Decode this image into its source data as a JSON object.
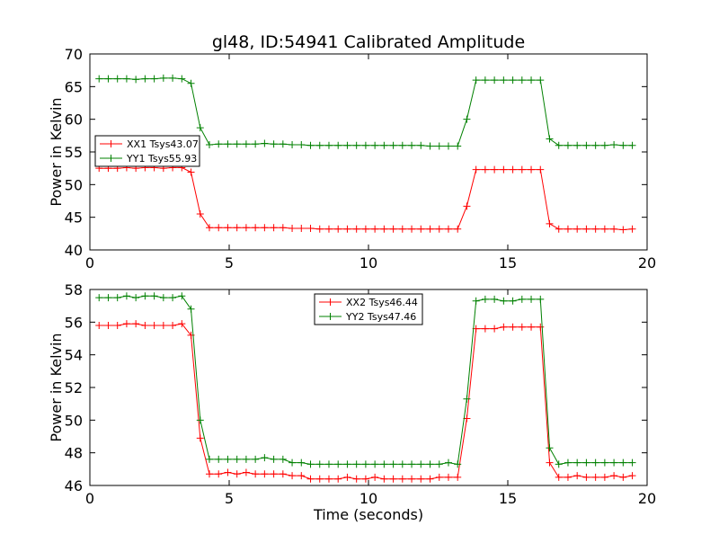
{
  "figure": {
    "title": "gl48, ID:54941 Calibrated Amplitude"
  },
  "chart_data": [
    {
      "type": "line",
      "title": "gl48, ID:54941 Calibrated Amplitude",
      "xlabel": "",
      "ylabel": "Power in Kelvin",
      "xlim": [
        0,
        20
      ],
      "ylim": [
        40,
        70
      ],
      "xticks": [
        0,
        5,
        10,
        15,
        20
      ],
      "yticks": [
        40,
        45,
        50,
        55,
        60,
        65,
        70
      ],
      "grid": false,
      "legend_position": "center-left",
      "x": [
        0.33,
        0.66,
        0.99,
        1.32,
        1.65,
        1.98,
        2.31,
        2.64,
        2.97,
        3.3,
        3.63,
        3.96,
        4.29,
        4.62,
        4.95,
        5.28,
        5.61,
        5.94,
        6.27,
        6.6,
        6.93,
        7.26,
        7.59,
        7.92,
        8.25,
        8.58,
        8.91,
        9.24,
        9.57,
        9.9,
        10.23,
        10.56,
        10.89,
        11.22,
        11.55,
        11.88,
        12.21,
        12.54,
        12.87,
        13.2,
        13.53,
        13.86,
        14.19,
        14.52,
        14.85,
        15.18,
        15.51,
        15.84,
        16.17,
        16.5,
        16.83,
        17.16,
        17.49,
        17.82,
        18.15,
        18.48,
        18.81,
        19.14,
        19.47
      ],
      "series": [
        {
          "name": "XX1 Tsys43.07",
          "color": "#ff0000",
          "values": [
            52.5,
            52.5,
            52.5,
            52.6,
            52.5,
            52.6,
            52.6,
            52.5,
            52.6,
            52.6,
            51.9,
            45.5,
            43.4,
            43.4,
            43.4,
            43.4,
            43.4,
            43.4,
            43.4,
            43.4,
            43.4,
            43.3,
            43.3,
            43.3,
            43.2,
            43.2,
            43.2,
            43.2,
            43.2,
            43.2,
            43.2,
            43.2,
            43.2,
            43.2,
            43.2,
            43.2,
            43.2,
            43.2,
            43.2,
            43.2,
            46.7,
            52.3,
            52.3,
            52.3,
            52.3,
            52.3,
            52.3,
            52.3,
            52.3,
            44.0,
            43.2,
            43.2,
            43.2,
            43.2,
            43.2,
            43.2,
            43.2,
            43.1,
            43.2
          ]
        },
        {
          "name": "YY1 Tsys55.93",
          "color": "#008000",
          "values": [
            66.2,
            66.2,
            66.2,
            66.2,
            66.1,
            66.2,
            66.2,
            66.3,
            66.3,
            66.2,
            65.5,
            58.7,
            56.1,
            56.2,
            56.2,
            56.2,
            56.2,
            56.2,
            56.3,
            56.2,
            56.2,
            56.1,
            56.1,
            56.0,
            56.0,
            56.0,
            56.0,
            56.0,
            56.0,
            56.0,
            56.0,
            56.0,
            56.0,
            56.0,
            56.0,
            56.0,
            55.9,
            55.9,
            55.9,
            55.9,
            60.0,
            66.0,
            66.0,
            66.0,
            66.0,
            66.0,
            66.0,
            66.0,
            66.0,
            57.0,
            56.0,
            56.0,
            56.0,
            56.0,
            56.0,
            56.0,
            56.1,
            56.0,
            56.0
          ]
        }
      ]
    },
    {
      "type": "line",
      "title": "",
      "xlabel": "Time (seconds)",
      "ylabel": "Power in Kelvin",
      "xlim": [
        0,
        20
      ],
      "ylim": [
        46,
        58
      ],
      "xticks": [
        0,
        5,
        10,
        15,
        20
      ],
      "yticks": [
        46,
        48,
        50,
        52,
        54,
        56,
        58
      ],
      "grid": false,
      "legend_position": "top-center",
      "x": [
        0.33,
        0.66,
        0.99,
        1.32,
        1.65,
        1.98,
        2.31,
        2.64,
        2.97,
        3.3,
        3.63,
        3.96,
        4.29,
        4.62,
        4.95,
        5.28,
        5.61,
        5.94,
        6.27,
        6.6,
        6.93,
        7.26,
        7.59,
        7.92,
        8.25,
        8.58,
        8.91,
        9.24,
        9.57,
        9.9,
        10.23,
        10.56,
        10.89,
        11.22,
        11.55,
        11.88,
        12.21,
        12.54,
        12.87,
        13.2,
        13.53,
        13.86,
        14.19,
        14.52,
        14.85,
        15.18,
        15.51,
        15.84,
        16.17,
        16.5,
        16.83,
        17.16,
        17.49,
        17.82,
        18.15,
        18.48,
        18.81,
        19.14,
        19.47
      ],
      "series": [
        {
          "name": "XX2 Tsys46.44",
          "color": "#ff0000",
          "values": [
            55.8,
            55.8,
            55.8,
            55.9,
            55.9,
            55.8,
            55.8,
            55.8,
            55.8,
            55.9,
            55.2,
            48.9,
            46.7,
            46.7,
            46.8,
            46.7,
            46.8,
            46.7,
            46.7,
            46.7,
            46.7,
            46.6,
            46.6,
            46.4,
            46.4,
            46.4,
            46.4,
            46.5,
            46.4,
            46.4,
            46.5,
            46.4,
            46.4,
            46.4,
            46.4,
            46.4,
            46.4,
            46.5,
            46.5,
            46.5,
            50.1,
            55.6,
            55.6,
            55.6,
            55.7,
            55.7,
            55.7,
            55.7,
            55.7,
            47.4,
            46.5,
            46.5,
            46.6,
            46.5,
            46.5,
            46.5,
            46.6,
            46.5,
            46.6
          ]
        },
        {
          "name": "YY2 Tsys47.46",
          "color": "#008000",
          "values": [
            57.5,
            57.5,
            57.5,
            57.6,
            57.5,
            57.6,
            57.6,
            57.5,
            57.5,
            57.6,
            56.8,
            50.0,
            47.6,
            47.6,
            47.6,
            47.6,
            47.6,
            47.6,
            47.7,
            47.6,
            47.6,
            47.4,
            47.4,
            47.3,
            47.3,
            47.3,
            47.3,
            47.3,
            47.3,
            47.3,
            47.3,
            47.3,
            47.3,
            47.3,
            47.3,
            47.3,
            47.3,
            47.3,
            47.4,
            47.3,
            51.3,
            57.3,
            57.4,
            57.4,
            57.3,
            57.3,
            57.4,
            57.4,
            57.4,
            48.3,
            47.3,
            47.4,
            47.4,
            47.4,
            47.4,
            47.4,
            47.4,
            47.4,
            47.4
          ]
        }
      ]
    }
  ]
}
